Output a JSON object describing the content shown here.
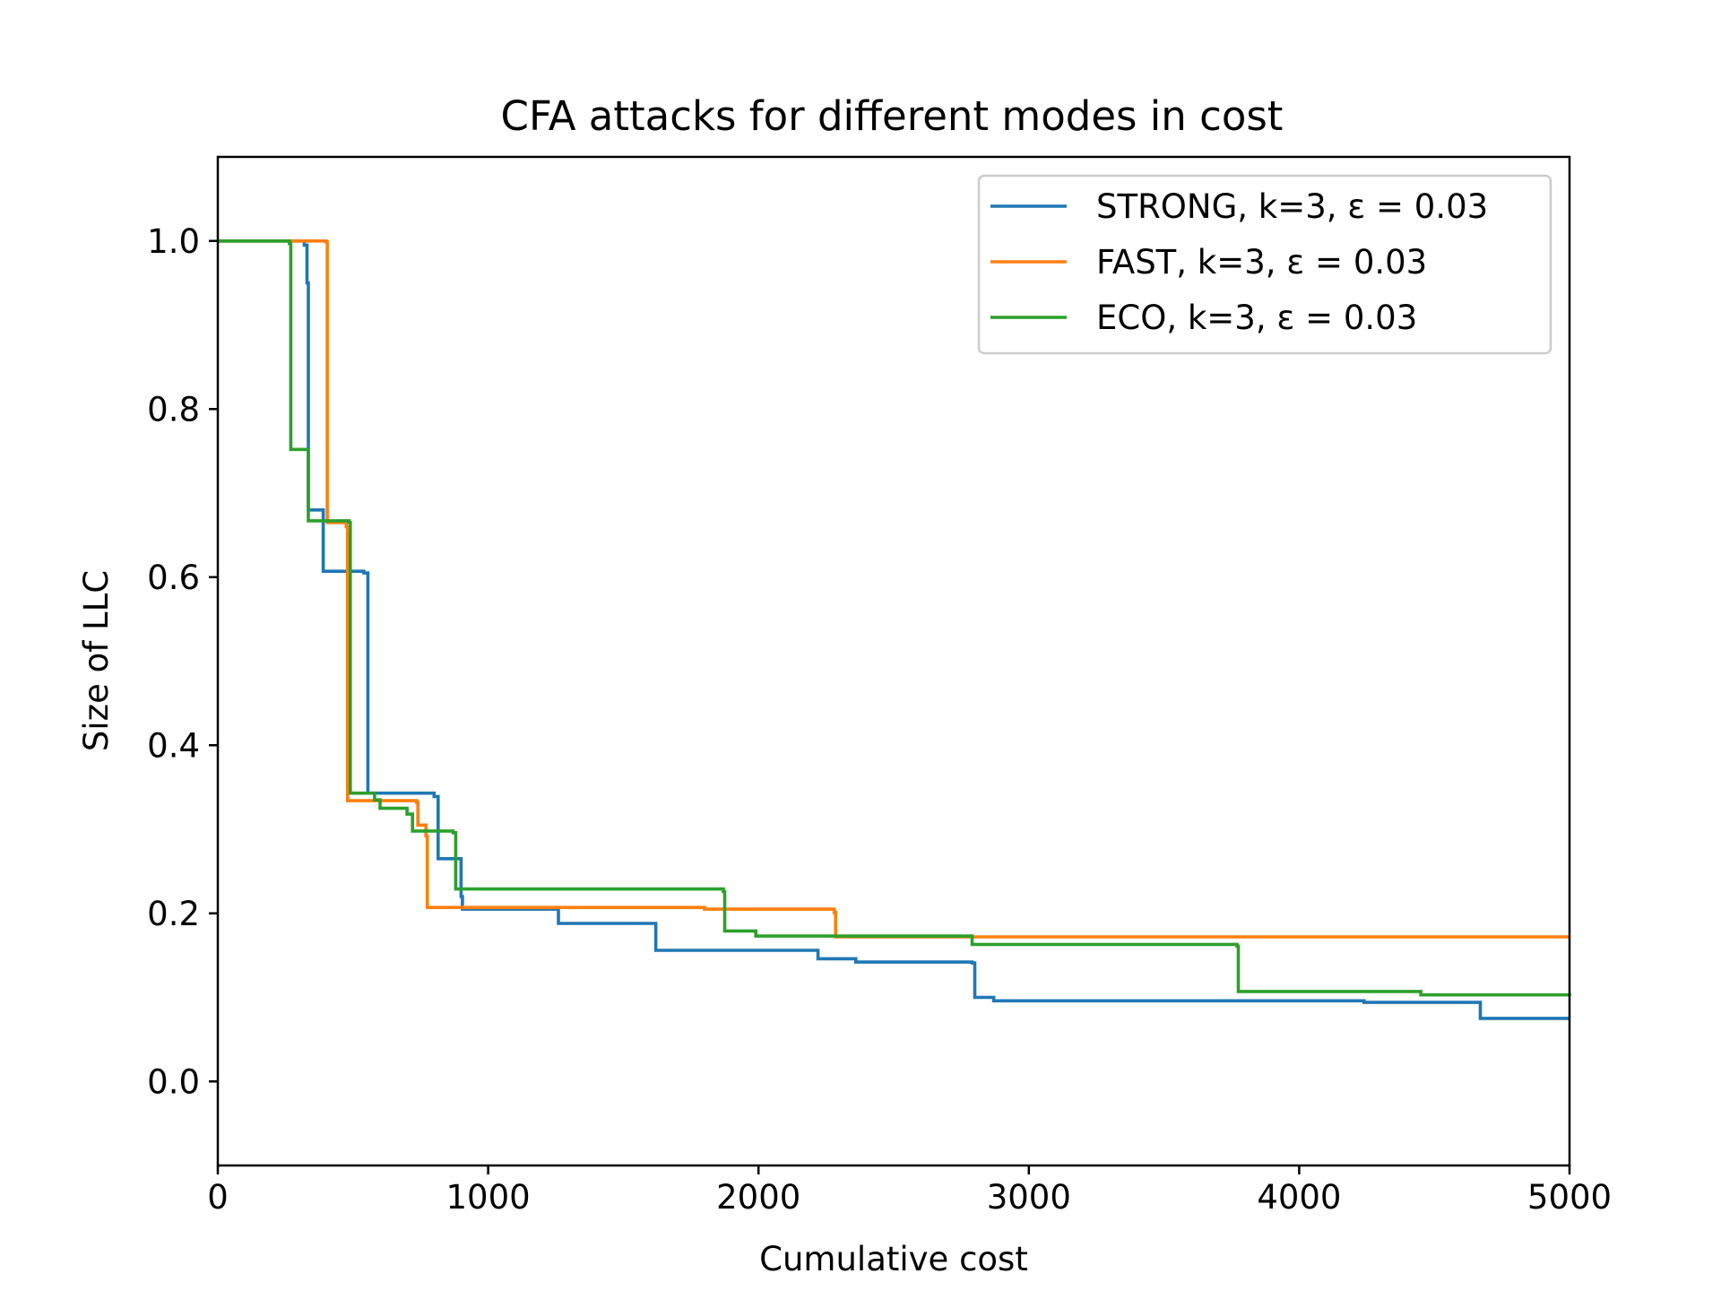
{
  "chart_data": {
    "type": "line",
    "title": "CFA attacks for different modes in cost",
    "xlabel": "Cumulative cost",
    "ylabel": "Size of LLC",
    "xlim": [
      0,
      5000
    ],
    "ylim": [
      -0.1,
      1.1
    ],
    "xticks": [
      0,
      1000,
      2000,
      3000,
      4000,
      5000
    ],
    "xtick_labels": [
      "0",
      "1000",
      "2000",
      "3000",
      "4000",
      "5000"
    ],
    "yticks": [
      0.0,
      0.2,
      0.4,
      0.6,
      0.8,
      1.0
    ],
    "ytick_labels": [
      "0.0",
      "0.2",
      "0.4",
      "0.6",
      "0.8",
      "1.0"
    ],
    "grid": false,
    "legend_position": "top-right",
    "step": true,
    "series": [
      {
        "name": "STRONG, k=3, ε = 0.03",
        "color": "#1f77b4",
        "x": [
          0,
          320,
          330,
          335,
          390,
          540,
          555,
          800,
          815,
          900,
          905,
          1260,
          1620,
          2220,
          2360,
          2790,
          2800,
          2870,
          4240,
          4670,
          5000
        ],
        "y": [
          1.0,
          0.995,
          0.95,
          0.68,
          0.607,
          0.605,
          0.343,
          0.339,
          0.265,
          0.22,
          0.205,
          0.188,
          0.156,
          0.146,
          0.142,
          0.141,
          0.1,
          0.096,
          0.094,
          0.075,
          0.075
        ]
      },
      {
        "name": "FAST, k=3, ε = 0.03",
        "color": "#ff7f0e",
        "x": [
          0,
          400,
          405,
          475,
          480,
          735,
          740,
          770,
          775,
          1800,
          2280,
          2285,
          5000
        ],
        "y": [
          1.0,
          0.999,
          0.665,
          0.66,
          0.334,
          0.332,
          0.305,
          0.292,
          0.207,
          0.205,
          0.201,
          0.172,
          0.172
        ]
      },
      {
        "name": "ECO, k=3, ε = 0.03",
        "color": "#2ca02c",
        "x": [
          0,
          265,
          270,
          330,
          335,
          485,
          490,
          580,
          600,
          700,
          720,
          870,
          880,
          1870,
          1875,
          1990,
          2790,
          3770,
          3775,
          4450,
          5000
        ],
        "y": [
          1.0,
          0.997,
          0.752,
          0.752,
          0.667,
          0.665,
          0.343,
          0.335,
          0.325,
          0.318,
          0.298,
          0.296,
          0.229,
          0.226,
          0.179,
          0.173,
          0.163,
          0.161,
          0.107,
          0.103,
          0.102
        ]
      }
    ]
  }
}
